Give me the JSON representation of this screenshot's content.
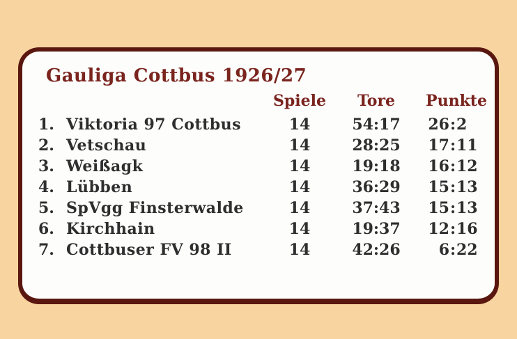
{
  "title": "Gauliga Cottbus 1926/27",
  "colors": {
    "page_background": "#F8D4A1",
    "card_background": "#FDFDFC",
    "card_border": "#5A170F",
    "heading_text": "#7A241E",
    "row_text": "#2E2E2E"
  },
  "table": {
    "headers": {
      "spiele": "Spiele",
      "tore": "Tore",
      "punkte": "Punkte"
    },
    "punkte_separator": ":",
    "standings": [
      {
        "rank": "1.",
        "team": "Viktoria 97 Cottbus",
        "spiele": "14",
        "tore": "54:17",
        "punkte": [
          "26",
          "2"
        ]
      },
      {
        "rank": "2.",
        "team": "Vetschau",
        "spiele": "14",
        "tore": "28:25",
        "punkte": [
          "17",
          "11"
        ]
      },
      {
        "rank": "3.",
        "team": "Weißagk",
        "spiele": "14",
        "tore": "19:18",
        "punkte": [
          "16",
          "12"
        ]
      },
      {
        "rank": "4.",
        "team": "Lübben",
        "spiele": "14",
        "tore": "36:29",
        "punkte": [
          "15",
          "13"
        ]
      },
      {
        "rank": "5.",
        "team": "SpVgg Finsterwalde",
        "spiele": "14",
        "tore": "37:43",
        "punkte": [
          "15",
          "13"
        ]
      },
      {
        "rank": "6.",
        "team": "Kirchhain",
        "spiele": "14",
        "tore": "19:37",
        "punkte": [
          "12",
          "16"
        ]
      },
      {
        "rank": "7.",
        "team": "Cottbuser FV 98 II",
        "spiele": "14",
        "tore": "42:26",
        "punkte": [
          "6",
          "22"
        ]
      }
    ]
  },
  "chart_data": {
    "type": "table",
    "title": "Gauliga Cottbus 1926/27",
    "columns": [
      "",
      "",
      "Spiele",
      "Tore",
      "Punkte"
    ],
    "rows": [
      [
        "1.",
        "Viktoria 97 Cottbus",
        "14",
        "54:17",
        "26:2"
      ],
      [
        "2.",
        "Vetschau",
        "14",
        "28:25",
        "17:11"
      ],
      [
        "3.",
        "Weißagk",
        "14",
        "19:18",
        "16:12"
      ],
      [
        "4.",
        "Lübben",
        "14",
        "36:29",
        "15:13"
      ],
      [
        "5.",
        "SpVgg Finsterwalde",
        "14",
        "37:43",
        "15:13"
      ],
      [
        "6.",
        "Kirchhain",
        "14",
        "19:37",
        "12:16"
      ],
      [
        "7.",
        "Cottbuser FV 98 II",
        "14",
        "42:26",
        "6:22"
      ]
    ]
  }
}
